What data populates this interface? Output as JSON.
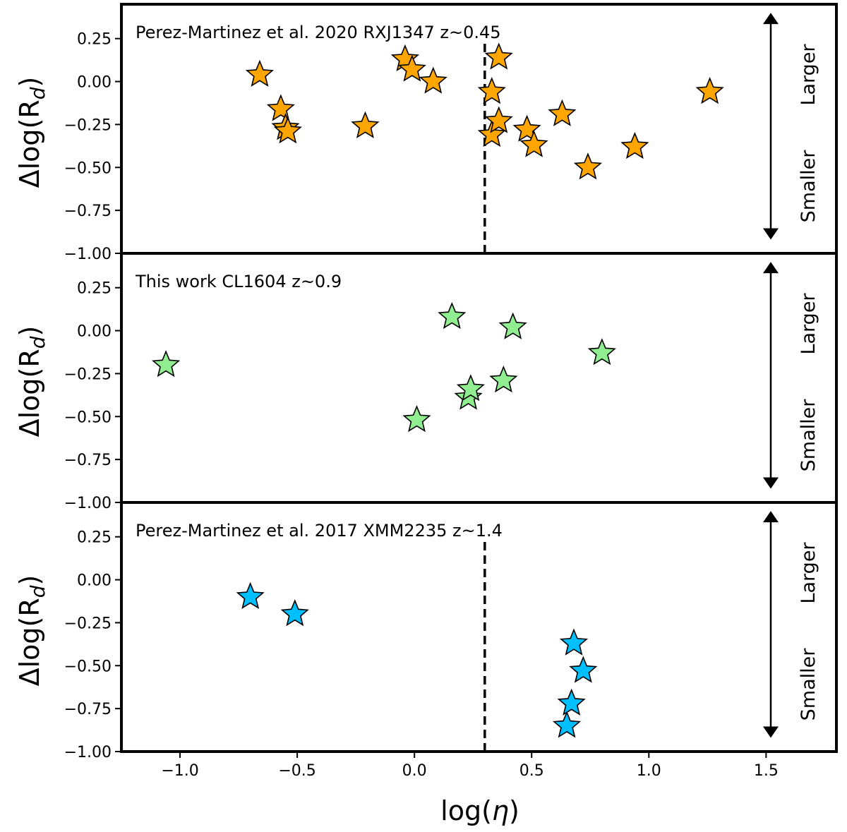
{
  "chart_data": {
    "type": "scatter",
    "shared_x": {
      "label_prefix": "log(",
      "label_symbol": "η",
      "label_suffix": ")",
      "xlim": [
        -1.25,
        1.8
      ],
      "ticks": [
        -1.0,
        -0.5,
        0.0,
        0.5,
        1.0,
        1.5
      ],
      "tick_labels": [
        "−1.0",
        "−0.5",
        "0.0",
        "0.5",
        "1.0",
        "1.5"
      ]
    },
    "reference_line": {
      "x": 0.3,
      "style": "dashed"
    },
    "y_axis": {
      "label_main": "Δlog(R",
      "label_sub": "d",
      "label_close": ")",
      "ylim": [
        -1.0,
        0.45
      ],
      "ticks": [
        0.25,
        0.0,
        -0.25,
        -0.5,
        -0.75,
        -1.0
      ],
      "tick_labels": [
        "0.25",
        "0.00",
        "−0.25",
        "−0.50",
        "−0.75",
        "−1.00"
      ]
    },
    "size_arrow": {
      "x": 1.52,
      "y_top": 0.4,
      "y_bottom": -0.92,
      "up_label": "Larger",
      "down_label": "Smaller"
    },
    "panels": [
      {
        "title": "Perez-Martinez et al. 2020 RXJ1347 z~0.45",
        "color": "#FFA500",
        "show_reference_line": true,
        "points": [
          {
            "x": -0.66,
            "y": 0.04
          },
          {
            "x": -0.57,
            "y": -0.16
          },
          {
            "x": -0.55,
            "y": -0.27
          },
          {
            "x": -0.54,
            "y": -0.29
          },
          {
            "x": -0.21,
            "y": -0.26
          },
          {
            "x": -0.04,
            "y": 0.13
          },
          {
            "x": -0.01,
            "y": 0.07
          },
          {
            "x": 0.08,
            "y": 0.0
          },
          {
            "x": 0.33,
            "y": -0.06
          },
          {
            "x": 0.33,
            "y": -0.31
          },
          {
            "x": 0.36,
            "y": 0.14
          },
          {
            "x": 0.36,
            "y": -0.23
          },
          {
            "x": 0.48,
            "y": -0.28
          },
          {
            "x": 0.51,
            "y": -0.37
          },
          {
            "x": 0.63,
            "y": -0.19
          },
          {
            "x": 0.74,
            "y": -0.5
          },
          {
            "x": 0.94,
            "y": -0.38
          },
          {
            "x": 1.26,
            "y": -0.06
          }
        ]
      },
      {
        "title": "This work CL1604 z~0.9",
        "color": "#90EE90",
        "show_reference_line": false,
        "points": [
          {
            "x": -1.06,
            "y": -0.2
          },
          {
            "x": 0.01,
            "y": -0.52
          },
          {
            "x": 0.16,
            "y": 0.08
          },
          {
            "x": 0.23,
            "y": -0.39
          },
          {
            "x": 0.24,
            "y": -0.34
          },
          {
            "x": 0.38,
            "y": -0.29
          },
          {
            "x": 0.42,
            "y": 0.02
          },
          {
            "x": 0.8,
            "y": -0.13
          }
        ]
      },
      {
        "title": "Perez-Martinez et al. 2017 XMM2235 z~1.4",
        "color": "#00BFFF",
        "show_reference_line": true,
        "points": [
          {
            "x": -0.7,
            "y": -0.1
          },
          {
            "x": -0.51,
            "y": -0.2
          },
          {
            "x": 0.65,
            "y": -0.85
          },
          {
            "x": 0.67,
            "y": -0.72
          },
          {
            "x": 0.68,
            "y": -0.37
          },
          {
            "x": 0.72,
            "y": -0.53
          }
        ]
      }
    ]
  }
}
